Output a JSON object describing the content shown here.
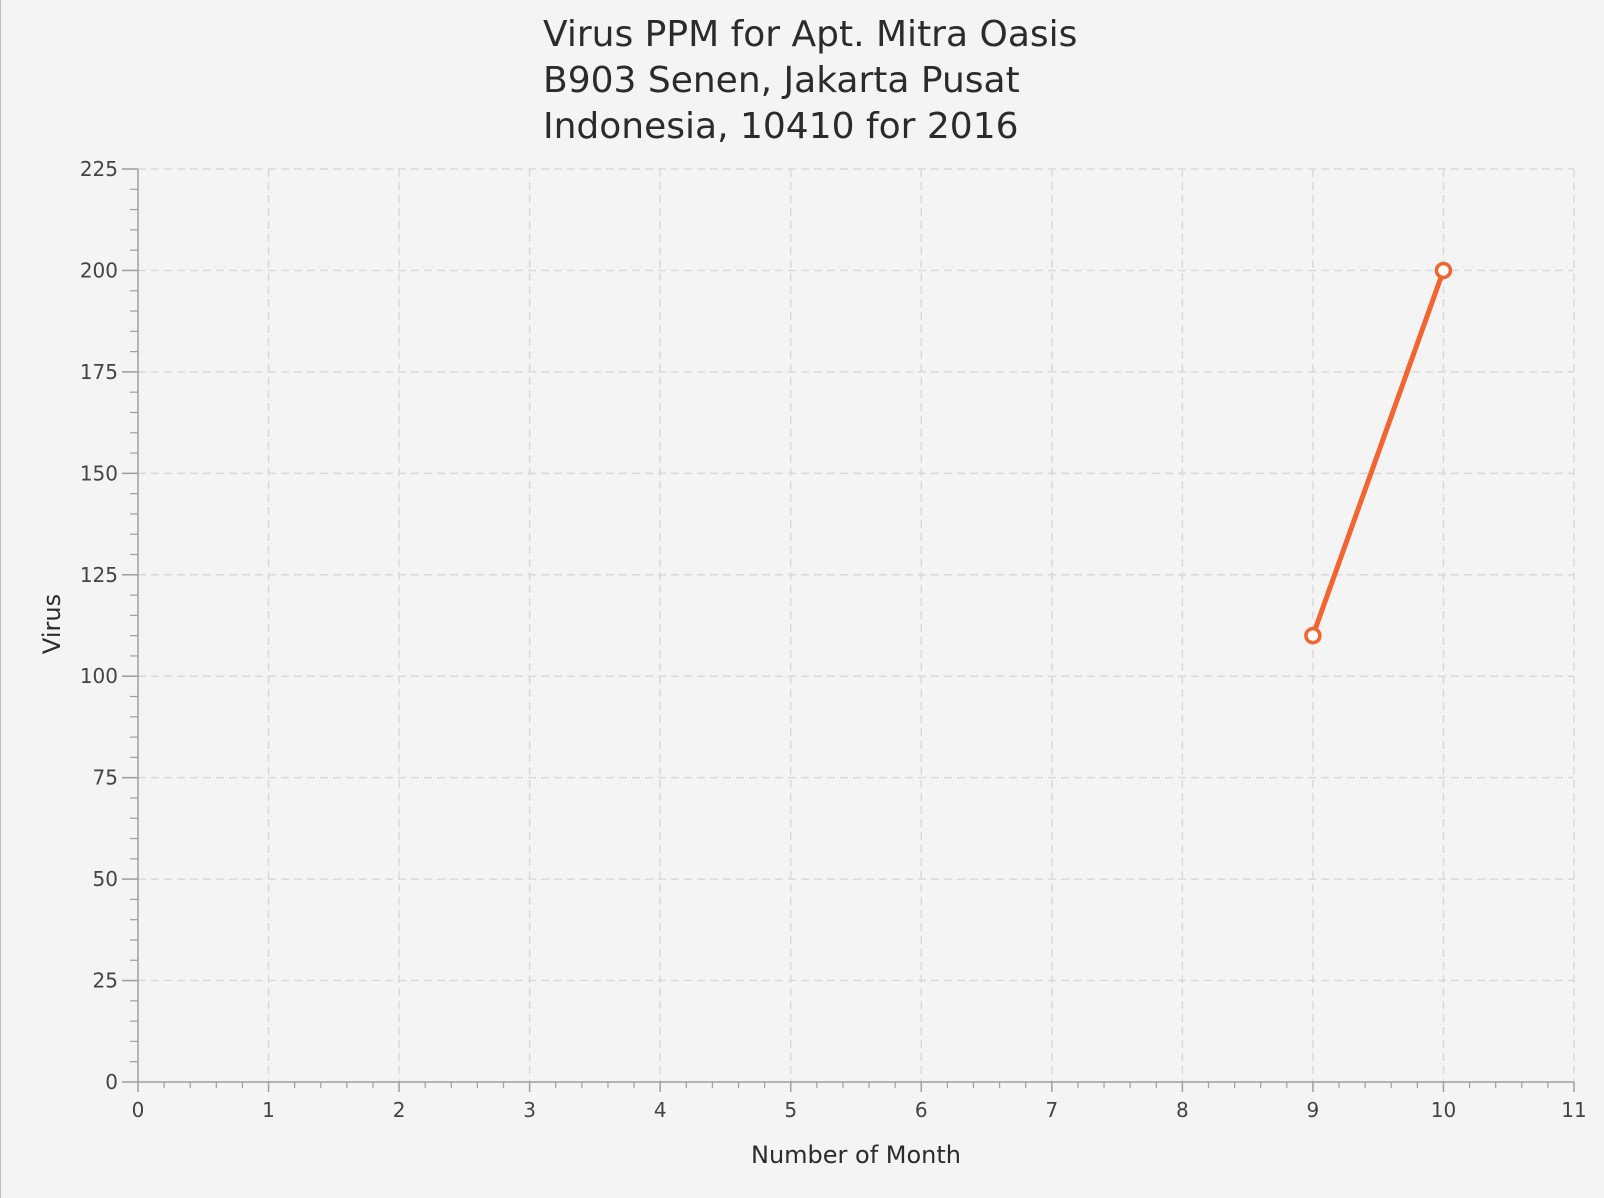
{
  "chart_data": {
    "type": "line",
    "title_lines": [
      "Virus PPM for Apt. Mitra Oasis",
      "B903 Senen, Jakarta Pusat",
      "Indonesia, 10410 for 2016"
    ],
    "xlabel": "Number of Month",
    "ylabel": "Virus",
    "xlim": [
      0,
      11
    ],
    "ylim": [
      0,
      225
    ],
    "x_ticks": [
      0,
      1,
      2,
      3,
      4,
      5,
      6,
      7,
      8,
      9,
      10,
      11
    ],
    "y_ticks": [
      0,
      25,
      50,
      75,
      100,
      125,
      150,
      175,
      200,
      225
    ],
    "x_minor_per_major": 5,
    "y_minor_per_major": 5,
    "grid": true,
    "series": [
      {
        "color": "#f26430",
        "points": [
          {
            "x": 9,
            "y": 110
          },
          {
            "x": 10,
            "y": 200
          }
        ]
      }
    ]
  }
}
